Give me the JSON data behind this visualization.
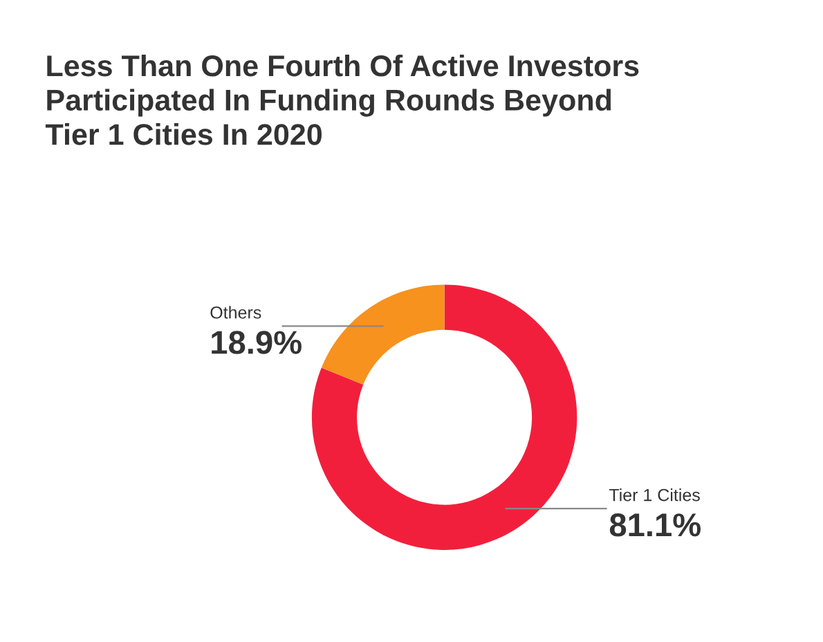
{
  "chart_data": {
    "type": "donut",
    "title": "Less Than One Fourth Of Active Investors\nParticipated In Funding Rounds Beyond\nTier 1 Cities In 2020",
    "categories": [
      "Tier 1 Cities",
      "Others"
    ],
    "values": [
      81.1,
      18.9
    ],
    "colors": [
      "#f21f3c",
      "#f7921e"
    ],
    "value_labels": [
      "81.1%",
      "18.9%"
    ],
    "legend": false
  }
}
